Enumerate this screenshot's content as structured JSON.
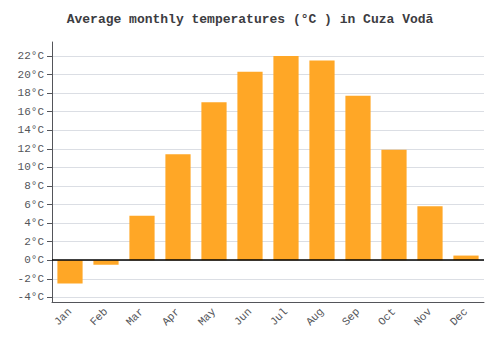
{
  "chart_data": {
    "type": "bar",
    "title": "Average monthly temperatures (°C ) in Cuza Vodă",
    "categories": [
      "Jan",
      "Feb",
      "Mar",
      "Apr",
      "May",
      "Jun",
      "Jul",
      "Aug",
      "Sep",
      "Oct",
      "Nov",
      "Dec"
    ],
    "values": [
      -2.5,
      -0.5,
      4.8,
      11.4,
      17.0,
      20.3,
      22.0,
      21.5,
      17.7,
      11.9,
      5.8,
      0.5
    ],
    "color": "#FFA726",
    "ylim": [
      -4.5,
      23.5
    ],
    "yticks": [
      {
        "value": -4,
        "label": "-4°C"
      },
      {
        "value": -2,
        "label": "-2°C"
      },
      {
        "value": 0,
        "label": "0°C"
      },
      {
        "value": 2,
        "label": "2°C"
      },
      {
        "value": 4,
        "label": "4°C"
      },
      {
        "value": 6,
        "label": "6°C"
      },
      {
        "value": 8,
        "label": "8°C"
      },
      {
        "value": 10,
        "label": "10°C"
      },
      {
        "value": 12,
        "label": "12°C"
      },
      {
        "value": 14,
        "label": "14°C"
      },
      {
        "value": 16,
        "label": "16°C"
      },
      {
        "value": 18,
        "label": "18°C"
      },
      {
        "value": 20,
        "label": "20°C"
      },
      {
        "value": 22,
        "label": "22°C"
      }
    ],
    "grid": true
  }
}
